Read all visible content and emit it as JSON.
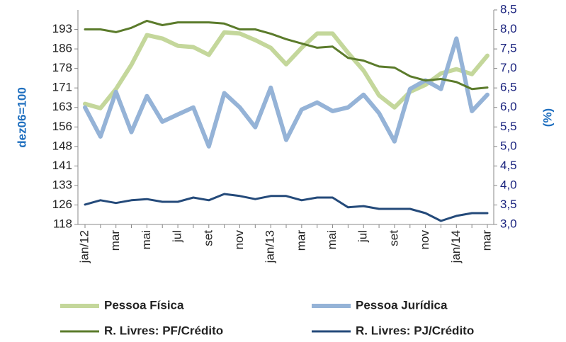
{
  "chart_data": {
    "type": "line",
    "categories": [
      "jan/12",
      null,
      "mar",
      null,
      "mai",
      null,
      "jul",
      null,
      "set",
      null,
      "nov",
      null,
      "jan/13",
      null,
      "mar",
      null,
      "mai",
      null,
      "jul",
      null,
      "set",
      null,
      "nov",
      null,
      "jan/14",
      null,
      "mar"
    ],
    "ylabel": "dez06=100",
    "y2label": "(%)",
    "ylim": [
      118,
      200.5
    ],
    "yticks": [
      118,
      {
        "value": 125.5,
        "label": "126"
      },
      133,
      {
        "value": 140.5,
        "label": "141"
      },
      148,
      {
        "value": 155.5,
        "label": "156"
      },
      163,
      {
        "value": 170.5,
        "label": "171"
      },
      178,
      {
        "value": 185.5,
        "label": "186"
      },
      193
    ],
    "y2lim": [
      3.0,
      8.5
    ],
    "y2ticks": [
      {
        "value": 3.0,
        "label": "3,0"
      },
      {
        "value": 3.5,
        "label": "3,5"
      },
      {
        "value": 4.0,
        "label": "4,0"
      },
      {
        "value": 4.5,
        "label": "4,5"
      },
      {
        "value": 5.0,
        "label": "5,0"
      },
      {
        "value": 5.5,
        "label": "5,5"
      },
      {
        "value": 6.0,
        "label": "6,0"
      },
      {
        "value": 6.5,
        "label": "6,5"
      },
      {
        "value": 7.0,
        "label": "7,0"
      },
      {
        "value": 7.5,
        "label": "7,5"
      },
      {
        "value": 8.0,
        "label": "8,0"
      },
      {
        "value": 8.5,
        "label": "8,5"
      }
    ],
    "series": [
      {
        "name": "Pessoa Física",
        "color": "#c4d79b",
        "values": [
          164.4,
          162.7,
          170.1,
          179.4,
          190.8,
          189.5,
          186.7,
          186.2,
          183.2,
          191.9,
          191.4,
          188.9,
          185.9,
          179.6,
          185.9,
          191.4,
          191.4,
          184.0,
          177.2,
          167.6,
          163.0,
          169.0,
          171.7,
          176.1,
          177.7,
          175.8,
          182.9
        ]
      },
      {
        "name": "Pessoa Jurídica",
        "color": "#95b3d7",
        "values": [
          163.0,
          151.8,
          169.0,
          153.5,
          167.4,
          157.5,
          160.3,
          163.0,
          148.0,
          168.5,
          163.0,
          155.4,
          170.6,
          150.5,
          162.2,
          164.9,
          161.6,
          163.0,
          167.9,
          160.8,
          149.9,
          170.1,
          173.4,
          170.1,
          189.5,
          161.6,
          167.9
        ]
      },
      {
        "name": "R. Livres: PF/Crédito",
        "color": "#5b7b2b",
        "axis": "y2",
        "values": [
          8.0,
          8.0,
          7.93,
          8.04,
          8.22,
          8.11,
          8.18,
          8.18,
          8.18,
          8.15,
          8.0,
          8.0,
          7.89,
          7.75,
          7.64,
          7.53,
          7.56,
          7.27,
          7.2,
          7.05,
          7.02,
          6.8,
          6.69,
          6.73,
          6.65,
          6.47,
          6.51
        ]
      },
      {
        "name": "R. Livres: PJ/Crédito",
        "color": "#244a7a",
        "axis": "y2",
        "values": [
          3.51,
          3.62,
          3.55,
          3.62,
          3.65,
          3.58,
          3.58,
          3.69,
          3.62,
          3.78,
          3.73,
          3.65,
          3.73,
          3.73,
          3.62,
          3.69,
          3.69,
          3.44,
          3.47,
          3.4,
          3.4,
          3.4,
          3.29,
          3.09,
          3.22,
          3.29,
          3.29
        ]
      }
    ]
  }
}
